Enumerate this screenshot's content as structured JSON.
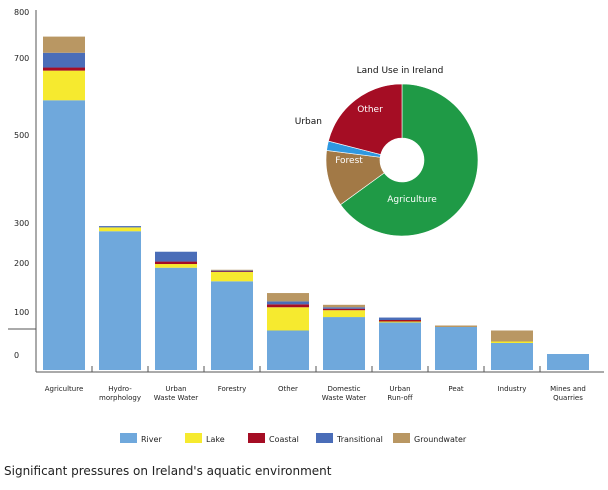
{
  "caption": "Significant pressures on Ireland's aquatic environment",
  "colors": {
    "River": "#6fa8dc",
    "Lake": "#f6ea2f",
    "Coastal": "#a50d24",
    "Transitional": "#4a6db8",
    "Groundwater": "#b99763",
    "Agriculture": "#1f9a46",
    "Forest": "#a27946",
    "Other": "#a50d24",
    "Urban": "#2f98e0"
  },
  "chart_data": [
    {
      "type": "bar",
      "stacked": true,
      "categories": [
        {
          "lines": [
            "Agriculture"
          ]
        },
        {
          "lines": [
            "Hydro-",
            "morphology"
          ]
        },
        {
          "lines": [
            "Urban",
            "Waste Water"
          ]
        },
        {
          "lines": [
            "Forestry"
          ]
        },
        {
          "lines": [
            "Other"
          ]
        },
        {
          "lines": [
            "Domestic",
            "Waste Water"
          ]
        },
        {
          "lines": [
            "Urban",
            "Run-off"
          ]
        },
        {
          "lines": [
            "Peat"
          ]
        },
        {
          "lines": [
            "Industry"
          ]
        },
        {
          "lines": [
            "Mines and",
            "Quarries"
          ]
        }
      ],
      "y_ticks": [
        "0",
        "100",
        "200",
        "300",
        "500",
        "700",
        "800"
      ],
      "series": [
        {
          "name": "River",
          "values": [
            611,
            297,
            208,
            179,
            79,
            106,
            95,
            86,
            54,
            32
          ]
        },
        {
          "name": "Lake",
          "values": [
            77,
            9,
            9,
            19,
            47,
            14,
            2,
            0,
            3,
            0
          ]
        },
        {
          "name": "Coastal",
          "values": [
            8,
            0,
            6,
            2,
            6,
            3,
            3,
            0,
            0,
            0
          ]
        },
        {
          "name": "Transitional",
          "values": [
            31,
            3,
            24,
            1,
            6,
            3,
            5,
            0,
            0,
            0
          ]
        },
        {
          "name": "Groundwater",
          "values": [
            33,
            0,
            0,
            2,
            17,
            5,
            0,
            3,
            22,
            0
          ]
        }
      ],
      "legend": "bottom"
    },
    {
      "type": "pie",
      "donut": true,
      "title": "Land Use in Ireland",
      "labels": [
        "Agriculture",
        "Forest",
        "Urban",
        "Other"
      ],
      "values": [
        65,
        12,
        2,
        21
      ]
    }
  ]
}
